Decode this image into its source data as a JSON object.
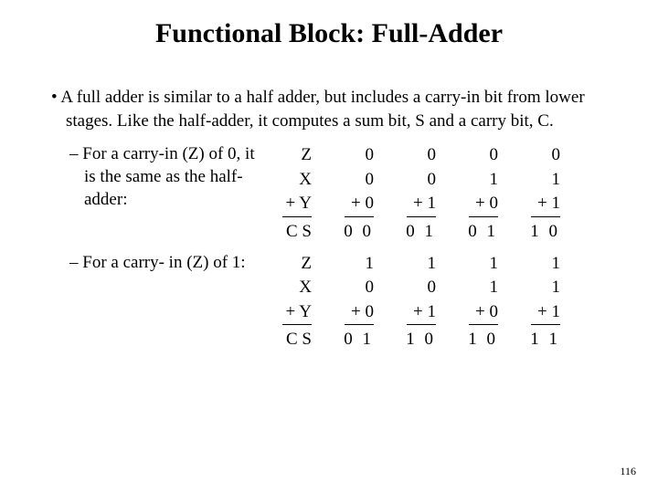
{
  "title": "Functional Block: Full-Adder",
  "main_bullet": "A full adder is similar to a half adder, but includes a carry-in bit from lower stages.   Like the half-adder, it computes a sum bit, S and a carry bit, C.",
  "sub1": "For a carry-in (Z) of 0, it is the same as the half-adder:",
  "sub2": "For a carry- in (Z) of 1:",
  "labels": {
    "z": "Z",
    "x": "X",
    "plusY": "+ Y",
    "cs": "C S"
  },
  "table1": {
    "cols": [
      {
        "z": "0",
        "x": "0",
        "y": "+ 0",
        "cs": "0 0"
      },
      {
        "z": "0",
        "x": "0",
        "y": "+ 1",
        "cs": "0 1"
      },
      {
        "z": "0",
        "x": "1",
        "y": "+ 0",
        "cs": "0 1"
      },
      {
        "z": "0",
        "x": "1",
        "y": "+ 1",
        "cs": "1 0"
      }
    ]
  },
  "table2": {
    "cols": [
      {
        "z": "1",
        "x": "0",
        "y": "+ 0",
        "cs": "0 1"
      },
      {
        "z": "1",
        "x": "0",
        "y": "+ 1",
        "cs": "1 0"
      },
      {
        "z": "1",
        "x": "1",
        "y": "+ 0",
        "cs": "1 0"
      },
      {
        "z": "1",
        "x": "1",
        "y": "+ 1",
        "cs": "1 1"
      }
    ]
  },
  "page_number": "116"
}
